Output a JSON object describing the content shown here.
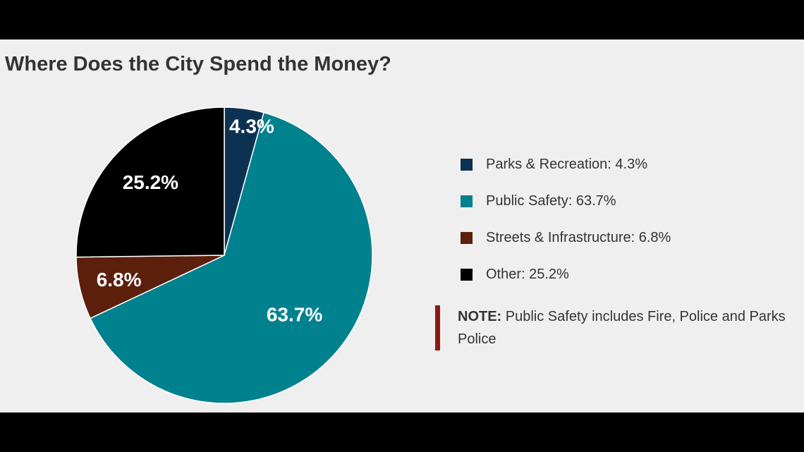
{
  "title": "Where Does the City Spend the Money?",
  "chart_data": {
    "type": "pie",
    "title": "Where Does the City Spend the Money?",
    "slices": [
      {
        "label": "Parks & Recreation",
        "value": 4.3,
        "data_label": "4.3%",
        "legend_text": "Parks & Recreation: 4.3%",
        "color": "#0d3151"
      },
      {
        "label": "Public Safety",
        "value": 63.7,
        "data_label": "63.7%",
        "legend_text": "Public Safety: 63.7%",
        "color": "#00818e"
      },
      {
        "label": "Streets & Infrastructure",
        "value": 6.8,
        "data_label": "6.8%",
        "legend_text": "Streets & Infrastructure: 6.8%",
        "color": "#5b1f0c"
      },
      {
        "label": "Other",
        "value": 25.2,
        "data_label": "25.2%",
        "legend_text": "Other: 25.2%",
        "color": "#000000"
      }
    ],
    "start_angle": "12 o'clock",
    "direction": "clockwise",
    "legend_position": "right"
  },
  "note": {
    "label": "NOTE:",
    "text": "Public Safety includes Fire, Police and Parks Police",
    "bar_color": "#8b1a12"
  }
}
